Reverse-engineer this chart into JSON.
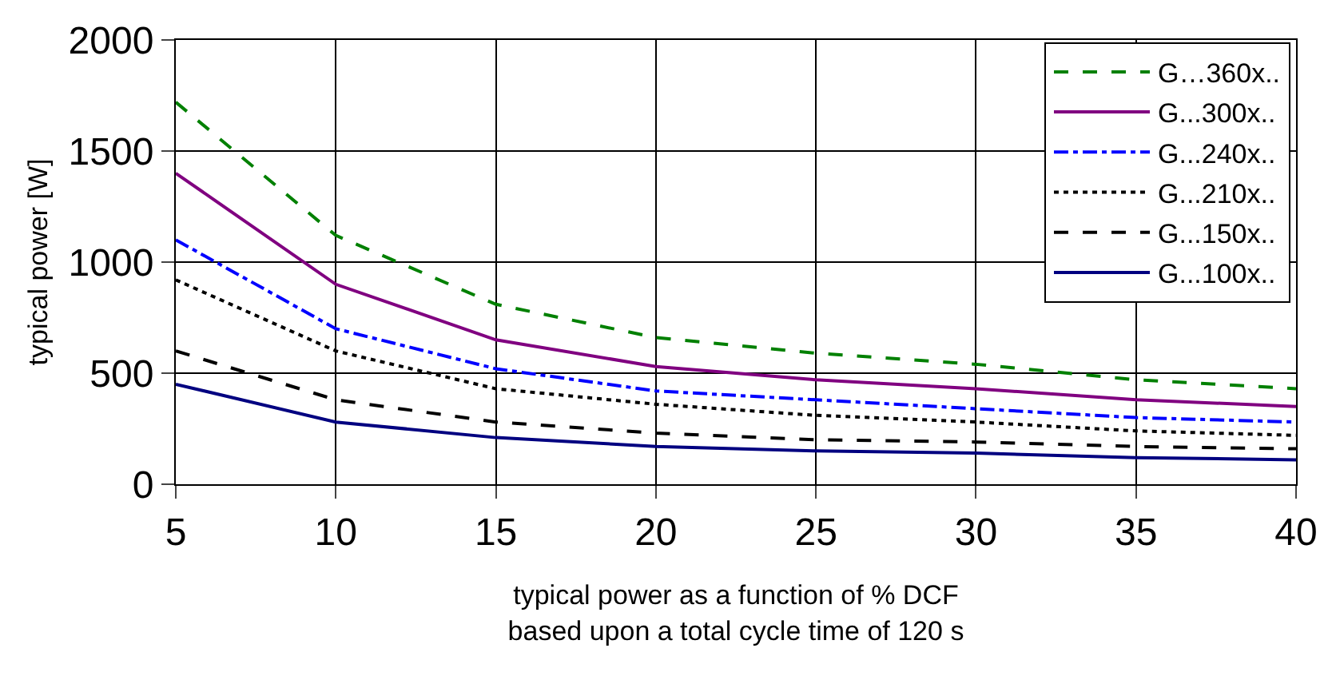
{
  "chart_data": {
    "type": "line",
    "xlabel": "typical power as a function of % DCF\nbased upon a total cycle time of 120 s",
    "ylabel": "typical power [W]",
    "x": [
      5,
      10,
      15,
      20,
      25,
      30,
      35,
      40
    ],
    "series": [
      {
        "name": "G…360x..",
        "color": "#008000",
        "line_style": "dashed",
        "values": [
          1720,
          1120,
          810,
          660,
          590,
          540,
          470,
          430
        ]
      },
      {
        "name": "G...300x..",
        "color": "#800080",
        "line_style": "solid",
        "values": [
          1400,
          900,
          650,
          530,
          470,
          430,
          380,
          350
        ]
      },
      {
        "name": "G...240x..",
        "color": "#0000ff",
        "line_style": "dashdot",
        "values": [
          1100,
          700,
          520,
          420,
          380,
          340,
          300,
          280
        ]
      },
      {
        "name": "G...210x..",
        "color": "#000000",
        "line_style": "dotted",
        "values": [
          920,
          600,
          430,
          360,
          310,
          280,
          240,
          220
        ]
      },
      {
        "name": "G...150x..",
        "color": "#000000",
        "line_style": "dashed",
        "values": [
          600,
          380,
          280,
          230,
          200,
          190,
          170,
          160
        ]
      },
      {
        "name": "G...100x..",
        "color": "#000080",
        "line_style": "solid",
        "values": [
          450,
          280,
          210,
          170,
          150,
          140,
          120,
          110
        ]
      }
    ],
    "xlim": [
      5,
      40
    ],
    "xticks": [
      5,
      10,
      15,
      20,
      25,
      30,
      35,
      40
    ],
    "ylim": [
      0,
      2000
    ],
    "yticks": [
      0,
      500,
      1000,
      1500,
      2000
    ],
    "grid": true,
    "legend": "top right",
    "marker": "none"
  }
}
